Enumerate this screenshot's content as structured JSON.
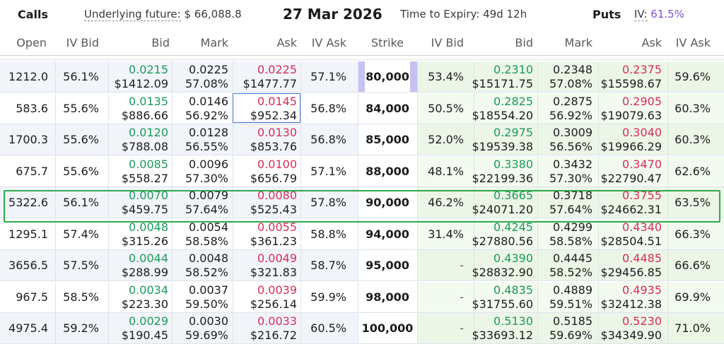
{
  "header": {
    "calls_label": "Calls",
    "underlying_label": "Underlying future:",
    "underlying_value": "$ 66,088.8",
    "expiry_date": "27 Mar 2026",
    "time_to_expiry": "Time to Expiry: 49d 12h",
    "puts_label": "Puts",
    "iv_label": "IV:",
    "iv_value": "61.5%"
  },
  "columns": {
    "calls": [
      "Open",
      "IV Bid",
      "Bid",
      "Mark",
      "Ask",
      "IV Ask"
    ],
    "strike": "Strike",
    "puts": [
      "IV Bid",
      "Bid",
      "Mark",
      "Ask",
      "IV Ask"
    ]
  },
  "rows": [
    {
      "call_open": "1212.0",
      "call_iv_bid": "56.1%",
      "call_bid": "0.0215",
      "call_bid_usd": "$1412.09",
      "call_mark": "0.0225",
      "call_mark_iv": "57.08%",
      "call_ask": "0.0225",
      "call_ask_usd": "$1477.77",
      "call_iv_ask": "57.1%",
      "strike": "80,000",
      "put_iv_bid": "53.4%",
      "put_bid": "0.2310",
      "put_bid_usd": "$15171.75",
      "put_mark": "0.2348",
      "put_mark_iv": "57.08%",
      "put_ask": "0.2375",
      "put_ask_usd": "$15598.67",
      "put_iv_ask": "59.6%"
    },
    {
      "call_open": "583.6",
      "call_iv_bid": "55.6%",
      "call_bid": "0.0135",
      "call_bid_usd": "$886.66",
      "call_mark": "0.0146",
      "call_mark_iv": "56.92%",
      "call_ask": "0.0145",
      "call_ask_usd": "$952.34",
      "call_iv_ask": "56.8%",
      "strike": "84,000",
      "put_iv_bid": "50.5%",
      "put_bid": "0.2825",
      "put_bid_usd": "$18554.20",
      "put_mark": "0.2875",
      "put_mark_iv": "56.92%",
      "put_ask": "0.2905",
      "put_ask_usd": "$19079.63",
      "put_iv_ask": "60.3%"
    },
    {
      "call_open": "1700.3",
      "call_iv_bid": "55.6%",
      "call_bid": "0.0120",
      "call_bid_usd": "$788.08",
      "call_mark": "0.0128",
      "call_mark_iv": "56.55%",
      "call_ask": "0.0130",
      "call_ask_usd": "$853.76",
      "call_iv_ask": "56.8%",
      "strike": "85,000",
      "put_iv_bid": "52.0%",
      "put_bid": "0.2975",
      "put_bid_usd": "$19539.38",
      "put_mark": "0.3009",
      "put_mark_iv": "56.56%",
      "put_ask": "0.3040",
      "put_ask_usd": "$19966.29",
      "put_iv_ask": "60.3%"
    },
    {
      "call_open": "675.7",
      "call_iv_bid": "55.6%",
      "call_bid": "0.0085",
      "call_bid_usd": "$558.27",
      "call_mark": "0.0096",
      "call_mark_iv": "57.30%",
      "call_ask": "0.0100",
      "call_ask_usd": "$656.79",
      "call_iv_ask": "57.1%",
      "strike": "88,000",
      "put_iv_bid": "48.1%",
      "put_bid": "0.3380",
      "put_bid_usd": "$22199.36",
      "put_mark": "0.3432",
      "put_mark_iv": "57.30%",
      "put_ask": "0.3470",
      "put_ask_usd": "$22790.47",
      "put_iv_ask": "62.6%"
    },
    {
      "call_open": "5322.6",
      "call_iv_bid": "56.1%",
      "call_bid": "0.0070",
      "call_bid_usd": "$459.75",
      "call_mark": "0.0079",
      "call_mark_iv": "57.64%",
      "call_ask": "0.0080",
      "call_ask_usd": "$525.43",
      "call_iv_ask": "57.8%",
      "strike": "90,000",
      "put_iv_bid": "46.2%",
      "put_bid": "0.3665",
      "put_bid_usd": "$24071.20",
      "put_mark": "0.3718",
      "put_mark_iv": "57.64%",
      "put_ask": "0.3755",
      "put_ask_usd": "$24662.31",
      "put_iv_ask": "63.5%"
    },
    {
      "call_open": "1295.1",
      "call_iv_bid": "57.4%",
      "call_bid": "0.0048",
      "call_bid_usd": "$315.26",
      "call_mark": "0.0054",
      "call_mark_iv": "58.58%",
      "call_ask": "0.0055",
      "call_ask_usd": "$361.23",
      "call_iv_ask": "58.8%",
      "strike": "94,000",
      "put_iv_bid": "31.4%",
      "put_bid": "0.4245",
      "put_bid_usd": "$27880.56",
      "put_mark": "0.4299",
      "put_mark_iv": "58.58%",
      "put_ask": "0.4340",
      "put_ask_usd": "$28504.51",
      "put_iv_ask": "66.3%"
    },
    {
      "call_open": "3656.5",
      "call_iv_bid": "57.5%",
      "call_bid": "0.0044",
      "call_bid_usd": "$288.99",
      "call_mark": "0.0048",
      "call_mark_iv": "58.52%",
      "call_ask": "0.0049",
      "call_ask_usd": "$321.83",
      "call_iv_ask": "58.7%",
      "strike": "95,000",
      "put_iv_bid": "-",
      "put_bid": "0.4390",
      "put_bid_usd": "$28832.90",
      "put_mark": "0.4445",
      "put_mark_iv": "58.52%",
      "put_ask": "0.4485",
      "put_ask_usd": "$29456.85",
      "put_iv_ask": "66.6%"
    },
    {
      "call_open": "967.5",
      "call_iv_bid": "58.5%",
      "call_bid": "0.0034",
      "call_bid_usd": "$223.30",
      "call_mark": "0.0037",
      "call_mark_iv": "59.50%",
      "call_ask": "0.0039",
      "call_ask_usd": "$256.14",
      "call_iv_ask": "59.9%",
      "strike": "98,000",
      "put_iv_bid": "-",
      "put_bid": "0.4835",
      "put_bid_usd": "$31755.60",
      "put_mark": "0.4889",
      "put_mark_iv": "59.51%",
      "put_ask": "0.4935",
      "put_ask_usd": "$32412.38",
      "put_iv_ask": "69.9%"
    },
    {
      "call_open": "4975.4",
      "call_iv_bid": "59.2%",
      "call_bid": "0.0029",
      "call_bid_usd": "$190.45",
      "call_mark": "0.0030",
      "call_mark_iv": "59.69%",
      "call_ask": "0.0033",
      "call_ask_usd": "$216.72",
      "call_iv_ask": "60.5%",
      "strike": "100,000",
      "put_iv_bid": "-",
      "put_bid": "0.5130",
      "put_bid_usd": "$33693.12",
      "put_mark": "0.5185",
      "put_mark_iv": "59.69%",
      "put_ask": "0.5230",
      "put_ask_usd": "$34349.90",
      "put_iv_ask": "71.0%"
    }
  ],
  "colors": {
    "bid": "#1a9a5a",
    "ask": "#d62e5a",
    "iv_accent": "#7b4fd8",
    "atm_highlight": "#2fa84f",
    "selected_cell": "#3a6fd8"
  }
}
